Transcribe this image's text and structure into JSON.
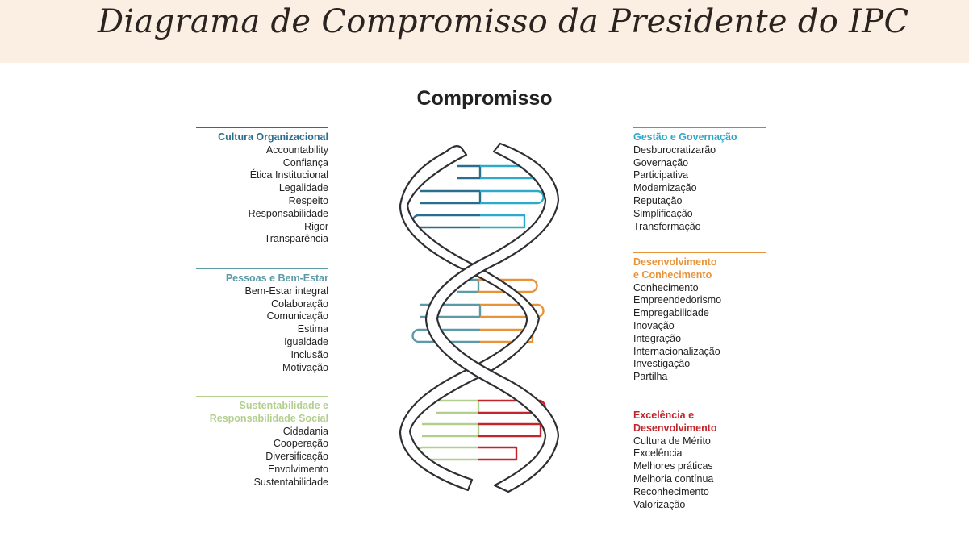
{
  "page_title": "Diagrama de Compromisso da Presidente do IPC",
  "diagram_title": "Compromisso",
  "groups": {
    "cultura": {
      "heading": "Cultura Organizacional",
      "color": "#2a6e8e",
      "items": [
        "Accountability",
        "Confiança",
        "Ética Institucional",
        "Legalidade",
        "Respeito",
        "Responsabilidade",
        "Rigor",
        "Transparência"
      ]
    },
    "pessoas": {
      "heading": "Pessoas e Bem-Estar",
      "color": "#5b9aa6",
      "items": [
        "Bem-Estar integral",
        "Colaboração",
        "Comunicação",
        "Estima",
        "Igualdade",
        "Inclusão",
        "Motivação"
      ]
    },
    "sustentabilidade": {
      "heading_line1": "Sustentabilidade e",
      "heading_line2": "Responsabilidade Social",
      "color": "#b3cf8e",
      "items": [
        "Cidadania",
        "Cooperação",
        "Diversificação",
        "Envolvimento",
        "Sustentabilidade"
      ]
    },
    "gestao": {
      "heading": "Gestão e Governação",
      "color": "#2ea9c9",
      "items": [
        "Desburocratizarão",
        "Governação",
        "Participativa",
        "Modernização",
        "Reputação",
        "Simplificação",
        "Transformação"
      ]
    },
    "desenvolvimento": {
      "heading_line1": "Desenvolvimento",
      "heading_line2": "e Conhecimento",
      "color": "#e8933a",
      "items": [
        "Conhecimento",
        "Empreendedorismo",
        "Empregabilidade",
        "Inovação",
        "Integração",
        "Internacionalização",
        "Investigação",
        "Partilha"
      ]
    },
    "excelencia": {
      "heading_line1": "Excelência e",
      "heading_line2": "Desenvolvimento",
      "color": "#c0262c",
      "items": [
        "Cultura de Mérito",
        "Excelência",
        "Melhores práticas",
        "Melhoria contínua",
        "Reconhecimento",
        "Valorização"
      ]
    }
  }
}
